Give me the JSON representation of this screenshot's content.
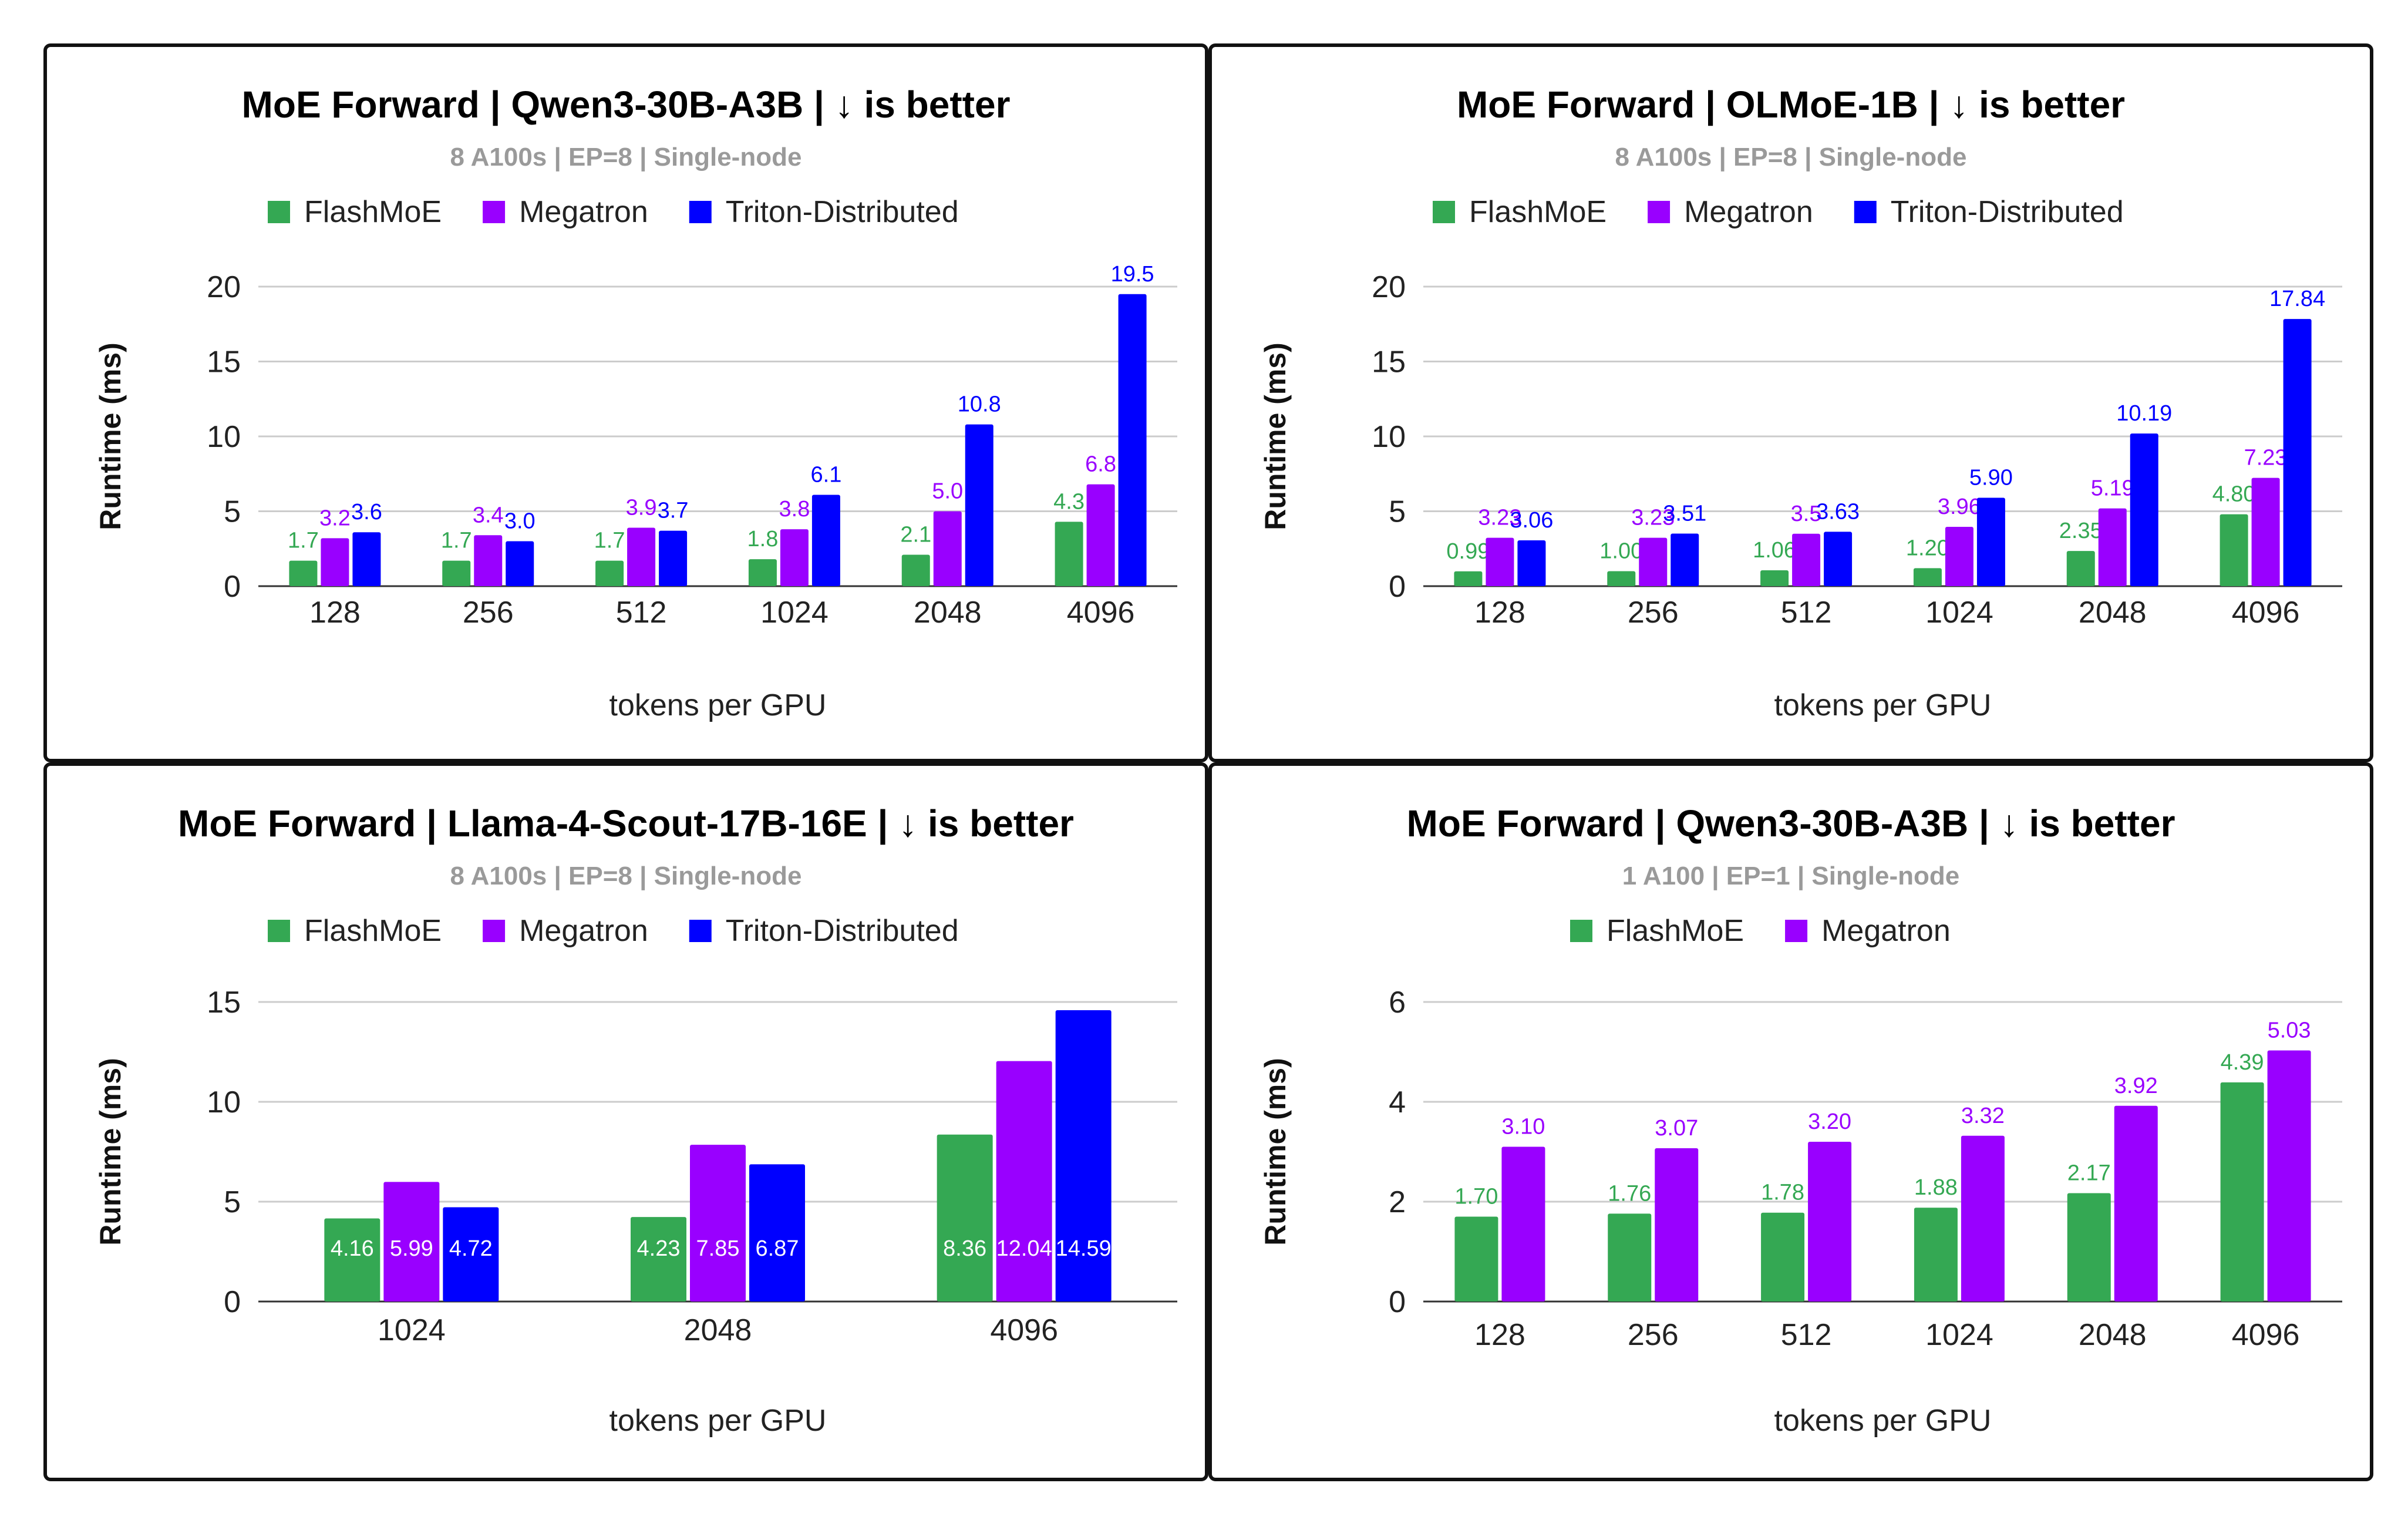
{
  "chart_data": [
    {
      "type": "bar",
      "title": "MoE Forward | Qwen3-30B-A3B | ↓ is better",
      "subtitle": "8 A100s | EP=8 | Single-node",
      "xlabel": "tokens per GPU",
      "ylabel": "Runtime (ms)",
      "ylim": [
        0,
        20
      ],
      "yticks": [
        "0",
        "5",
        "10",
        "15",
        "20"
      ],
      "label_position": "above",
      "categories": [
        "128",
        "256",
        "512",
        "1024",
        "2048",
        "4096"
      ],
      "series": [
        {
          "name": "FlashMoE",
          "color": "#34a853",
          "values": [
            1.7,
            1.7,
            1.7,
            1.8,
            2.1,
            4.3
          ],
          "labels": [
            "1.7",
            "1.7",
            "1.7",
            "1.8",
            "2.1",
            "4.3"
          ]
        },
        {
          "name": "Megatron",
          "color": "#9900ff",
          "values": [
            3.2,
            3.4,
            3.9,
            3.8,
            5.0,
            6.8
          ],
          "labels": [
            "3.2",
            "3.4",
            "3.9",
            "3.8",
            "5.0",
            "6.8"
          ]
        },
        {
          "name": "Triton-Distributed",
          "color": "#0000ff",
          "values": [
            3.6,
            3.0,
            3.7,
            6.1,
            10.8,
            19.5
          ],
          "labels": [
            "3.6",
            "3.0",
            "3.7",
            "6.1",
            "10.8",
            "19.5"
          ]
        }
      ],
      "legend": "top",
      "grid": true
    },
    {
      "type": "bar",
      "title": "MoE Forward | OLMoE-1B | ↓ is better",
      "subtitle": "8 A100s | EP=8 | Single-node",
      "xlabel": "tokens per GPU",
      "ylabel": "Runtime (ms)",
      "ylim": [
        0,
        20
      ],
      "yticks": [
        "0",
        "5",
        "10",
        "15",
        "20"
      ],
      "label_position": "above",
      "categories": [
        "128",
        "256",
        "512",
        "1024",
        "2048",
        "4096"
      ],
      "series": [
        {
          "name": "FlashMoE",
          "color": "#34a853",
          "values": [
            0.99,
            1.0,
            1.06,
            1.2,
            2.35,
            4.8
          ],
          "labels": [
            "0.99",
            "1.00",
            "1.06",
            "1.20",
            "2.35",
            "4.80"
          ]
        },
        {
          "name": "Megatron",
          "color": "#9900ff",
          "values": [
            3.23,
            3.23,
            3.5,
            3.96,
            5.19,
            7.23
          ],
          "labels": [
            "3.23",
            "3.23",
            "3.5",
            "3.96",
            "5.19",
            "7.23"
          ]
        },
        {
          "name": "Triton-Distributed",
          "color": "#0000ff",
          "values": [
            3.06,
            3.51,
            3.63,
            5.9,
            10.19,
            17.84
          ],
          "labels": [
            "3.06",
            "3.51",
            "3.63",
            "5.90",
            "10.19",
            "17.84"
          ]
        }
      ],
      "legend": "top",
      "grid": true
    },
    {
      "type": "bar",
      "title": "MoE Forward | Llama-4-Scout-17B-16E | ↓ is better",
      "subtitle": "8 A100s | EP=8 | Single-node",
      "xlabel": "tokens per GPU",
      "ylabel": "Runtime (ms)",
      "ylim": [
        0,
        15
      ],
      "yticks": [
        "0",
        "5",
        "10",
        "15"
      ],
      "label_position": "inside",
      "categories": [
        "1024",
        "2048",
        "4096"
      ],
      "series": [
        {
          "name": "FlashMoE",
          "color": "#34a853",
          "values": [
            4.16,
            4.23,
            8.36
          ],
          "labels": [
            "4.16",
            "4.23",
            "8.36"
          ]
        },
        {
          "name": "Megatron",
          "color": "#9900ff",
          "values": [
            5.99,
            7.85,
            12.04
          ],
          "labels": [
            "5.99",
            "7.85",
            "12.04"
          ]
        },
        {
          "name": "Triton-Distributed",
          "color": "#0000ff",
          "values": [
            4.72,
            6.87,
            14.59
          ],
          "labels": [
            "4.72",
            "6.87",
            "14.59"
          ]
        }
      ],
      "legend": "top",
      "grid": true
    },
    {
      "type": "bar",
      "title": "MoE Forward | Qwen3-30B-A3B | ↓ is better",
      "subtitle": "1 A100 | EP=1 | Single-node",
      "xlabel": "tokens per GPU",
      "ylabel": "Runtime (ms)",
      "ylim": [
        0,
        6
      ],
      "yticks": [
        "0",
        "2",
        "4",
        "6"
      ],
      "label_position": "above",
      "categories": [
        "128",
        "256",
        "512",
        "1024",
        "2048",
        "4096"
      ],
      "series": [
        {
          "name": "FlashMoE",
          "color": "#34a853",
          "values": [
            1.7,
            1.76,
            1.78,
            1.88,
            2.17,
            4.39
          ],
          "labels": [
            "1.70",
            "1.76",
            "1.78",
            "1.88",
            "2.17",
            "4.39"
          ]
        },
        {
          "name": "Megatron",
          "color": "#9900ff",
          "values": [
            3.1,
            3.07,
            3.2,
            3.32,
            3.92,
            5.03
          ],
          "labels": [
            "3.10",
            "3.07",
            "3.20",
            "3.32",
            "3.92",
            "5.03"
          ]
        }
      ],
      "legend": "top",
      "grid": true
    }
  ]
}
